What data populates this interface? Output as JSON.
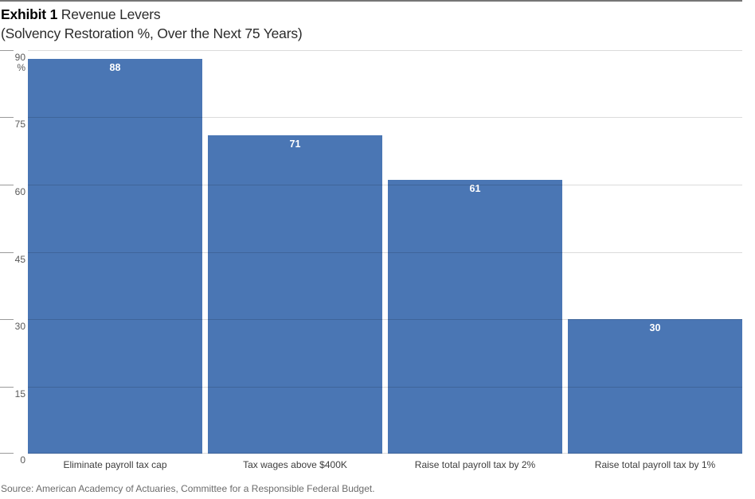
{
  "header": {
    "exhibit_label": "Exhibit 1",
    "title": " Revenue Levers",
    "subtitle": "(Solvency Restoration %, Over the Next 75 Years)"
  },
  "chart_data": {
    "type": "bar",
    "title": "Exhibit 1 Revenue Levers (Solvency Restoration %, Over the Next 75 Years)",
    "categories": [
      "Eliminate payroll tax cap",
      "Tax wages above $400K",
      "Raise total payroll tax by 2%",
      "Raise total payroll tax by 1%"
    ],
    "values": [
      88,
      71,
      61,
      30
    ],
    "value_labels": [
      "88",
      "71",
      "61",
      "30"
    ],
    "xlabel": "",
    "ylabel": "%",
    "y_unit": "%",
    "ylim": [
      0,
      90
    ],
    "yticks": [
      90,
      75,
      60,
      45,
      30,
      15,
      0
    ],
    "grid": true,
    "legend": "none",
    "bar_color": "#4a76b4",
    "value_label_color": "#ffffff"
  },
  "footer": {
    "source": "Source: American Academcy of Actuaries, Committee for a Responsible Federal Budget."
  },
  "colors": {
    "bar": "#4a76b4",
    "top_rule": "#757575",
    "gridline_rgba": "rgba(0,0,0,0.14)",
    "axis_text": "#595959",
    "category_text": "#3d3d3d",
    "source_text": "#6b6b6b"
  }
}
